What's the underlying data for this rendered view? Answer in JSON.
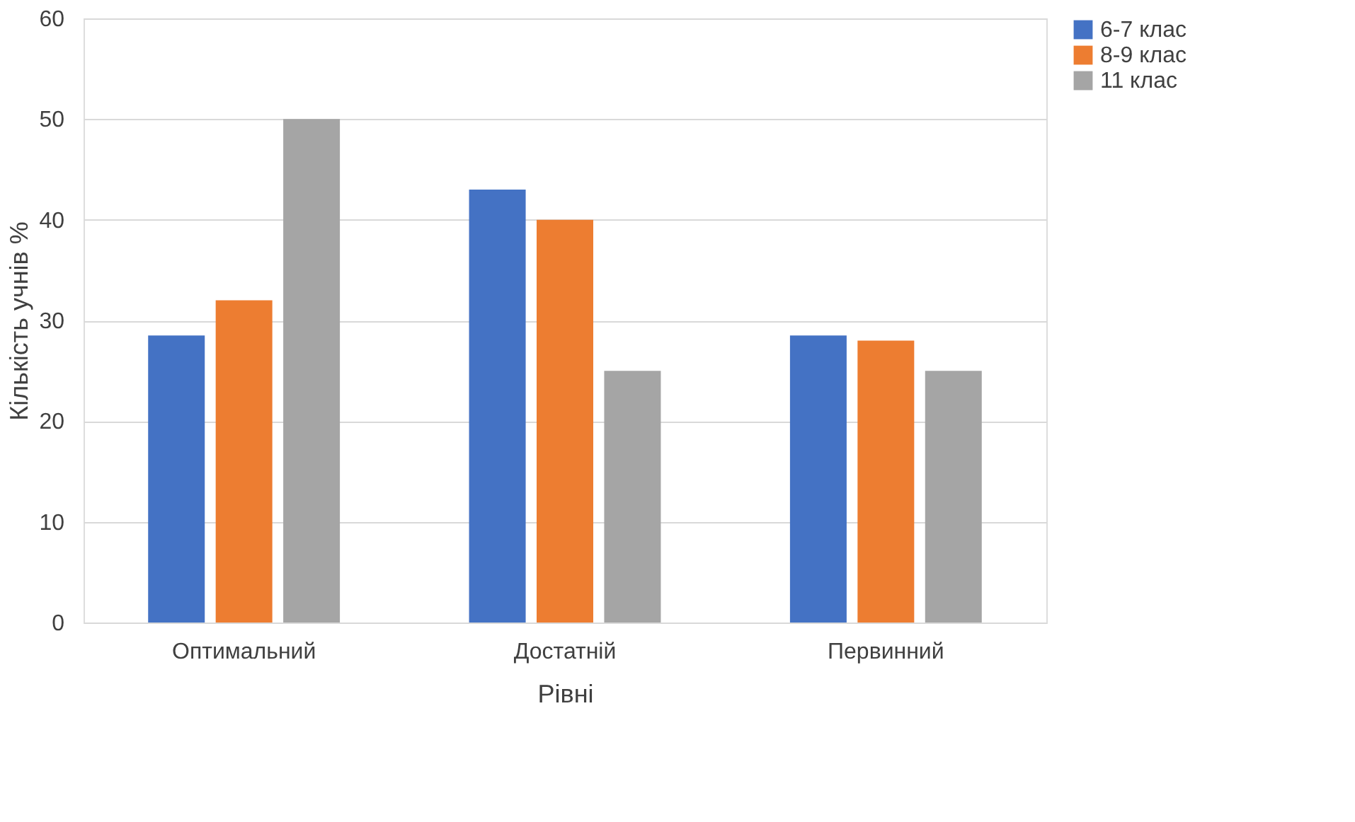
{
  "chart_data": {
    "type": "bar",
    "xlabel": "Рівні",
    "ylabel": "Кількість учнів  %",
    "categories": [
      "Оптимальний",
      "Достатній",
      "Первинний"
    ],
    "series": [
      {
        "name": "6-7 клас",
        "color": "#4472c4",
        "values": [
          28.5,
          43,
          28.5
        ]
      },
      {
        "name": "8-9 клас",
        "color": "#ed7d31",
        "values": [
          32,
          40,
          28
        ]
      },
      {
        "name": "11 клас",
        "color": "#a5a5a5",
        "values": [
          50,
          25,
          25
        ]
      }
    ],
    "ylim": [
      0,
      60
    ],
    "yticks": [
      0,
      10,
      20,
      30,
      40,
      50,
      60
    ],
    "grid": "y",
    "legend": "right"
  }
}
